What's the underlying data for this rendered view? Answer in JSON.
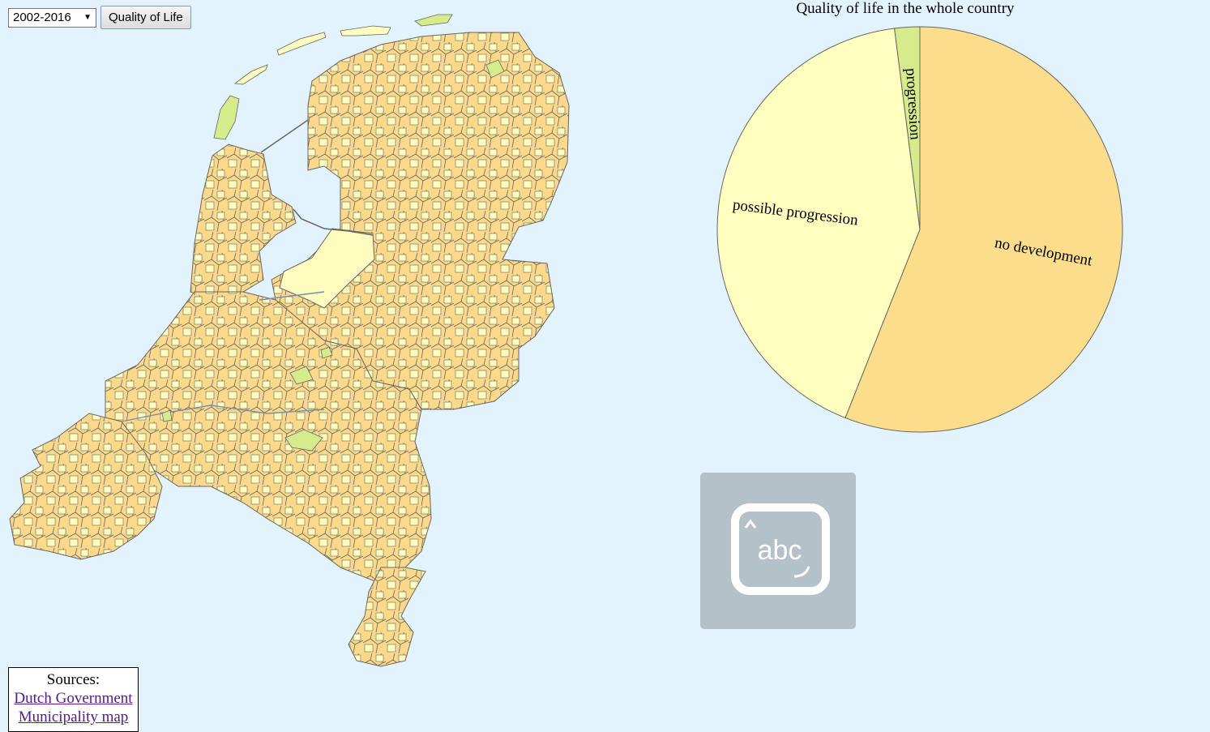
{
  "controls": {
    "period_select": {
      "selected": "2002-2016"
    },
    "qol_button_label": "Quality of Life"
  },
  "map": {
    "colors": {
      "no_development": "#fcd98a",
      "possible_progression": "#fefcbe",
      "progression": "#d4ec8c",
      "border": "#666666"
    }
  },
  "chart_data": {
    "type": "pie",
    "title": "Quality of life in the whole country",
    "slices": [
      {
        "label": "no development",
        "value": 56,
        "color": "#fcdd8c"
      },
      {
        "label": "possible progression",
        "value": 42,
        "color": "#ffffc0"
      },
      {
        "label": "progression",
        "value": 2,
        "color": "#d6ec8c"
      }
    ],
    "legend": "none"
  },
  "keyboard_tile": {
    "icon": "keyboard-abc-icon",
    "text": "abc"
  },
  "sources": {
    "heading": "Sources:",
    "links": [
      "Dutch Government",
      "Municipality map"
    ]
  }
}
